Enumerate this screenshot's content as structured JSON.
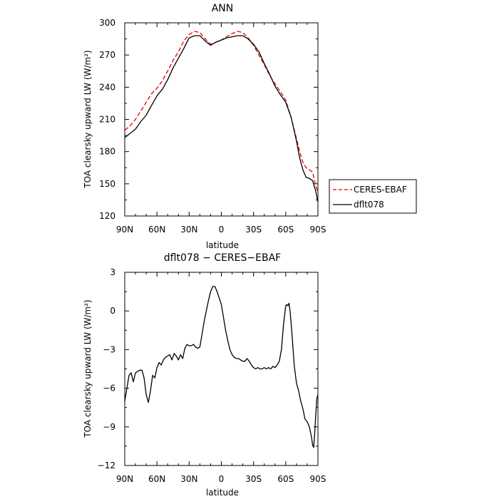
{
  "chart_data": [
    {
      "type": "line",
      "title": "ANN",
      "xlabel": "latitude",
      "ylabel": "TOA clearsky upward LW (W/m²)",
      "xlim": [
        90,
        -90
      ],
      "ylim": [
        120,
        300
      ],
      "xticks": [
        90,
        60,
        30,
        0,
        -30,
        -60,
        -90
      ],
      "xtick_labels": [
        "90N",
        "60N",
        "30N",
        "0",
        "30S",
        "60S",
        "90S"
      ],
      "yticks": [
        120,
        150,
        180,
        210,
        240,
        270,
        300
      ],
      "ytick_labels": [
        "120",
        "150",
        "180",
        "210",
        "240",
        "270",
        "300"
      ],
      "grid": false,
      "legend_position": "right",
      "series": [
        {
          "name": "CERES-EBAF",
          "color": "#e00000",
          "dash": true,
          "x": [
            90,
            85,
            80,
            75,
            70,
            65,
            60,
            55,
            50,
            45,
            40,
            35,
            30,
            25,
            20,
            15,
            10,
            5,
            0,
            -5,
            -10,
            -15,
            -20,
            -25,
            -30,
            -35,
            -40,
            -45,
            -50,
            -55,
            -60,
            -65,
            -70,
            -73,
            -76,
            -79,
            -82,
            -85,
            -88,
            -90
          ],
          "values": [
            200,
            204,
            210,
            218,
            226,
            234,
            239,
            246,
            255,
            265,
            273,
            283,
            289,
            292,
            291,
            285,
            280,
            282,
            284,
            287,
            290,
            292,
            291,
            286,
            279,
            270,
            261,
            251,
            243,
            236,
            228,
            212,
            192,
            180,
            170,
            165,
            163,
            161,
            148,
            142
          ]
        },
        {
          "name": "dflt078",
          "color": "#000000",
          "dash": false,
          "x": [
            90,
            85,
            80,
            75,
            70,
            65,
            60,
            55,
            50,
            45,
            40,
            35,
            30,
            25,
            20,
            15,
            10,
            5,
            0,
            -5,
            -10,
            -15,
            -20,
            -25,
            -30,
            -35,
            -40,
            -45,
            -50,
            -55,
            -60,
            -65,
            -70,
            -73,
            -76,
            -79,
            -82,
            -85,
            -88,
            -90
          ],
          "values": [
            193,
            197,
            201,
            208,
            214,
            223,
            232,
            238,
            247,
            258,
            267,
            276,
            286,
            288,
            288,
            283,
            279,
            282,
            284,
            286,
            287,
            288,
            288,
            285,
            280,
            273,
            262,
            252,
            241,
            233,
            226,
            212,
            190,
            174,
            163,
            156,
            155,
            153,
            143,
            133
          ]
        }
      ]
    },
    {
      "type": "line",
      "title": "dflt078 − CERES−EBAF",
      "xlabel": "latitude",
      "ylabel": "TOA clearsky upward LW (W/m²)",
      "xlim": [
        90,
        -90
      ],
      "ylim": [
        -12,
        3
      ],
      "xticks": [
        90,
        60,
        30,
        0,
        -30,
        -60,
        -90
      ],
      "xtick_labels": [
        "90N",
        "60N",
        "30N",
        "0",
        "30S",
        "60S",
        "90S"
      ],
      "yticks": [
        -12,
        -9,
        -6,
        -3,
        0,
        3
      ],
      "ytick_labels": [
        "−12",
        "−9",
        "−6",
        "−3",
        "0",
        "3"
      ],
      "grid": false,
      "series": [
        {
          "color": "#000000",
          "x": [
            90,
            88,
            86,
            84,
            82,
            80,
            78,
            76,
            74,
            72,
            70,
            68,
            66,
            64,
            62,
            60,
            58,
            56,
            54,
            52,
            50,
            48,
            46,
            44,
            42,
            40,
            38,
            36,
            34,
            32,
            30,
            28,
            26,
            24,
            22,
            20,
            18,
            16,
            14,
            12,
            10,
            8,
            6,
            4,
            2,
            0,
            -2,
            -4,
            -6,
            -8,
            -10,
            -12,
            -14,
            -16,
            -18,
            -20,
            -22,
            -24,
            -26,
            -28,
            -30,
            -32,
            -34,
            -36,
            -38,
            -40,
            -42,
            -44,
            -46,
            -48,
            -50,
            -52,
            -54,
            -56,
            -58,
            -60,
            -61,
            -62,
            -63,
            -64,
            -65,
            -66,
            -67,
            -68,
            -70,
            -72,
            -74,
            -76,
            -78,
            -80,
            -82,
            -84,
            -85,
            -86,
            -87,
            -88,
            -89,
            -90
          ],
          "values": [
            -7.0,
            -6.0,
            -5.0,
            -4.8,
            -5.5,
            -4.8,
            -4.7,
            -4.6,
            -4.6,
            -5.2,
            -6.5,
            -7.1,
            -6.2,
            -5.0,
            -5.2,
            -4.4,
            -4.0,
            -4.2,
            -3.8,
            -3.6,
            -3.5,
            -3.4,
            -3.8,
            -3.3,
            -3.5,
            -3.8,
            -3.4,
            -3.7,
            -2.9,
            -2.6,
            -2.7,
            -2.7,
            -2.6,
            -2.8,
            -2.9,
            -2.8,
            -1.8,
            -0.8,
            0.0,
            0.8,
            1.5,
            1.9,
            1.9,
            1.5,
            1.0,
            0.5,
            -0.5,
            -1.5,
            -2.3,
            -3.0,
            -3.4,
            -3.6,
            -3.7,
            -3.7,
            -3.8,
            -3.9,
            -3.9,
            -3.7,
            -3.9,
            -4.2,
            -4.4,
            -4.5,
            -4.4,
            -4.5,
            -4.5,
            -4.4,
            -4.5,
            -4.4,
            -4.5,
            -4.3,
            -4.4,
            -4.2,
            -3.9,
            -3.0,
            -1.0,
            0.4,
            0.5,
            0.4,
            0.6,
            0.0,
            -1.0,
            -2.0,
            -3.2,
            -4.3,
            -5.6,
            -6.2,
            -7.0,
            -7.6,
            -8.4,
            -8.6,
            -9.0,
            -9.8,
            -10.4,
            -10.6,
            -9.5,
            -8.0,
            -6.8,
            -6.5
          ]
        }
      ]
    }
  ]
}
